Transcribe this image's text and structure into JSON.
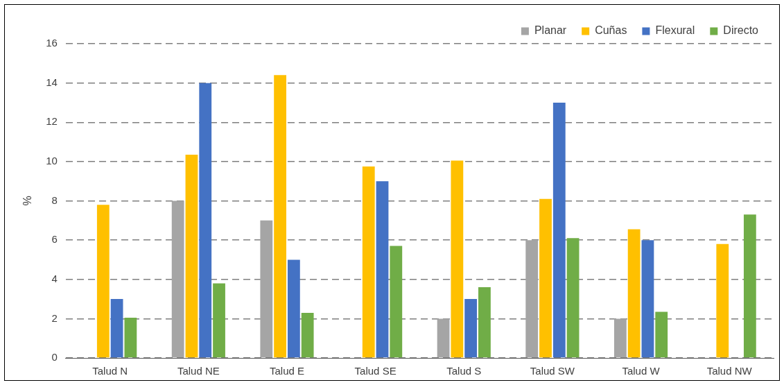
{
  "chart_data": {
    "type": "bar",
    "ylabel": "%",
    "categories": [
      "Talud N",
      "Talud NE",
      "Talud E",
      "Talud SE",
      "Talud S",
      "Talud SW",
      "Talud W",
      "Talud NW"
    ],
    "series": [
      {
        "name": "Planar",
        "color": "#a5a5a5",
        "values": [
          0,
          8,
          7,
          0,
          2,
          6,
          2,
          0
        ]
      },
      {
        "name": "Cuñas",
        "color": "#ffc000",
        "values": [
          7.8,
          10.35,
          14.4,
          9.75,
          10.05,
          8.1,
          6.55,
          5.8
        ]
      },
      {
        "name": "Flexural",
        "color": "#4472c4",
        "values": [
          3,
          14,
          5,
          9,
          3,
          13,
          6,
          0
        ]
      },
      {
        "name": "Directo",
        "color": "#70ad47",
        "values": [
          2.05,
          3.8,
          2.3,
          5.7,
          3.6,
          6.1,
          2.35,
          7.3
        ]
      }
    ],
    "ylim": [
      0,
      16
    ],
    "yticks": [
      0,
      2,
      4,
      6,
      8,
      10,
      12,
      14,
      16
    ],
    "grid": "y",
    "legend": "top right"
  }
}
